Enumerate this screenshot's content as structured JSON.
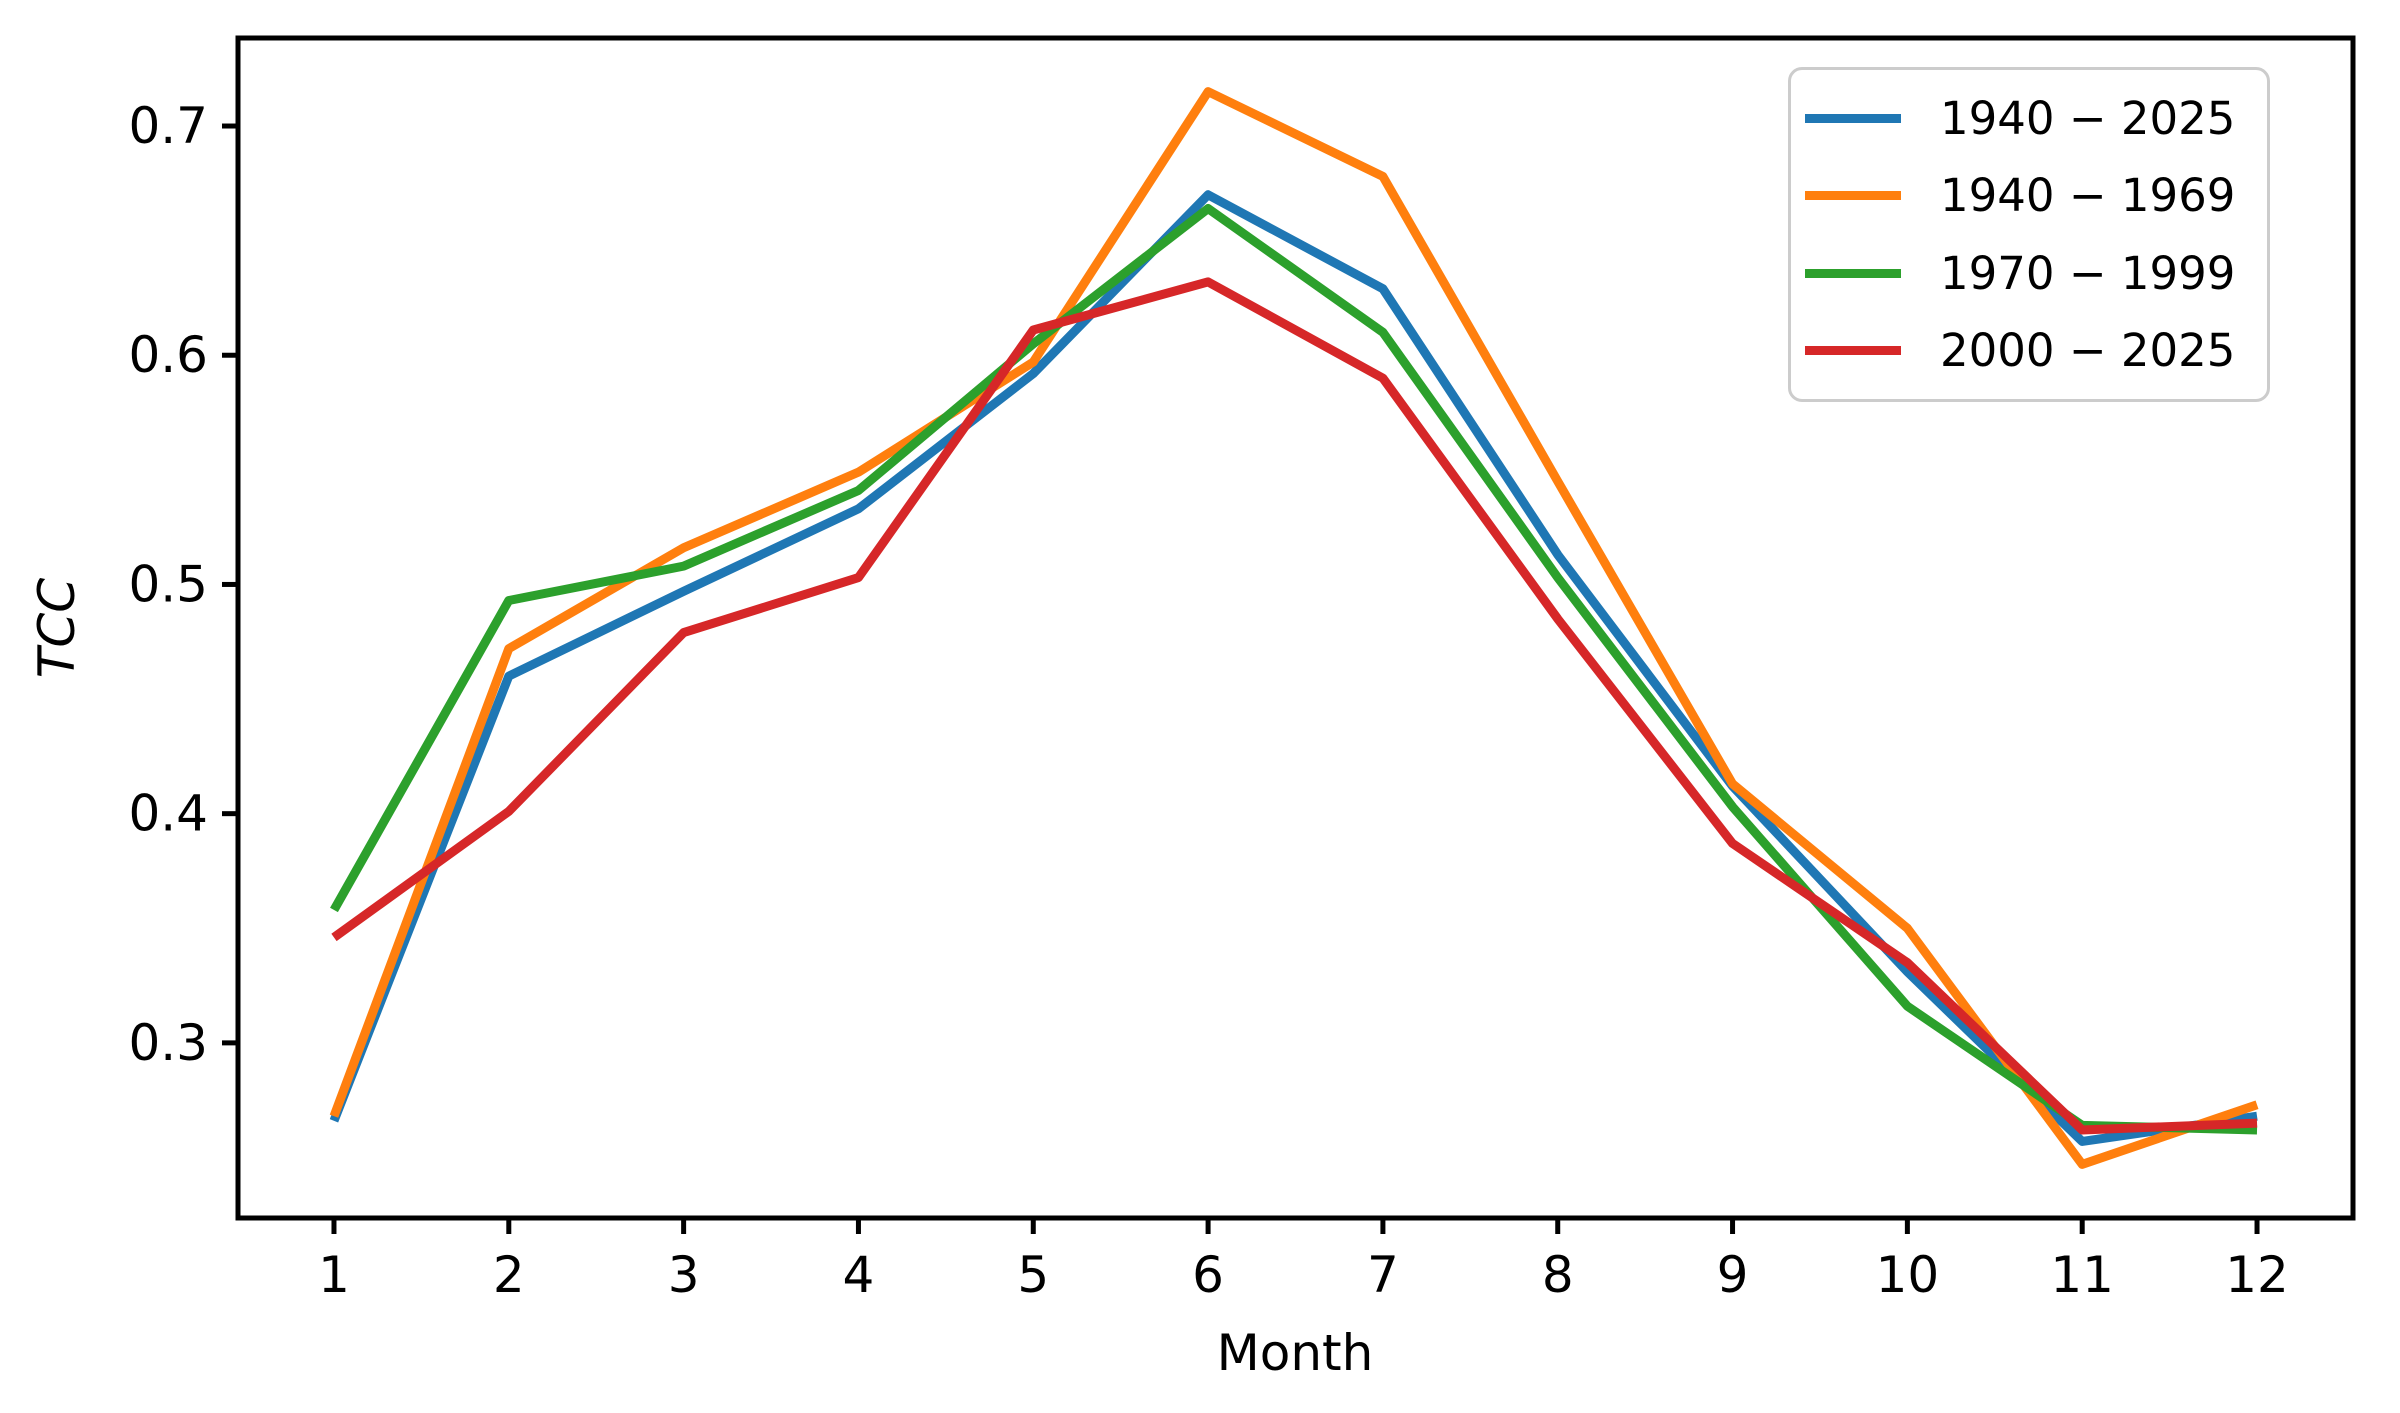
{
  "figure": {
    "background": "#ffffff",
    "text_color": "#000000",
    "spine_color": "#000000",
    "legend_border_color": "#cccccc"
  },
  "chart_data": {
    "type": "line",
    "title": "",
    "xlabel": "Month",
    "ylabel": "TCC",
    "ylabel_style": "italic",
    "x": [
      1,
      2,
      3,
      4,
      5,
      6,
      7,
      8,
      9,
      10,
      11,
      12
    ],
    "series": [
      {
        "name": "1940 − 2025",
        "color": "#1f77b4",
        "values": [
          0.266,
          0.46,
          0.497,
          0.533,
          0.592,
          0.67,
          0.629,
          0.513,
          0.412,
          0.331,
          0.257,
          0.268
        ]
      },
      {
        "name": "1940 − 1969",
        "color": "#ff7f0e",
        "values": [
          0.268,
          0.472,
          0.516,
          0.549,
          0.597,
          0.715,
          0.678,
          0.545,
          0.413,
          0.35,
          0.247,
          0.273
        ]
      },
      {
        "name": "1970 − 1999",
        "color": "#2ca02c",
        "values": [
          0.358,
          0.493,
          0.508,
          0.541,
          0.605,
          0.664,
          0.61,
          0.503,
          0.403,
          0.316,
          0.264,
          0.262
        ]
      },
      {
        "name": "2000 − 2025",
        "color": "#d62728",
        "values": [
          0.346,
          0.401,
          0.479,
          0.503,
          0.611,
          0.632,
          0.59,
          0.485,
          0.387,
          0.335,
          0.262,
          0.265
        ]
      }
    ],
    "xlim": [
      0.451,
      12.549
    ],
    "ylim": [
      0.2236,
      0.7384
    ],
    "xticks": [
      1,
      2,
      3,
      4,
      5,
      6,
      7,
      8,
      9,
      10,
      11,
      12
    ],
    "xtick_labels": [
      "1",
      "2",
      "3",
      "4",
      "5",
      "6",
      "7",
      "8",
      "9",
      "10",
      "11",
      "12"
    ],
    "yticks": [
      0.3,
      0.4,
      0.5,
      0.6,
      0.7
    ],
    "ytick_labels": [
      "0.3",
      "0.4",
      "0.5",
      "0.6",
      "0.7"
    ],
    "grid": false,
    "legend_position": "upper right",
    "line_width": 9
  }
}
